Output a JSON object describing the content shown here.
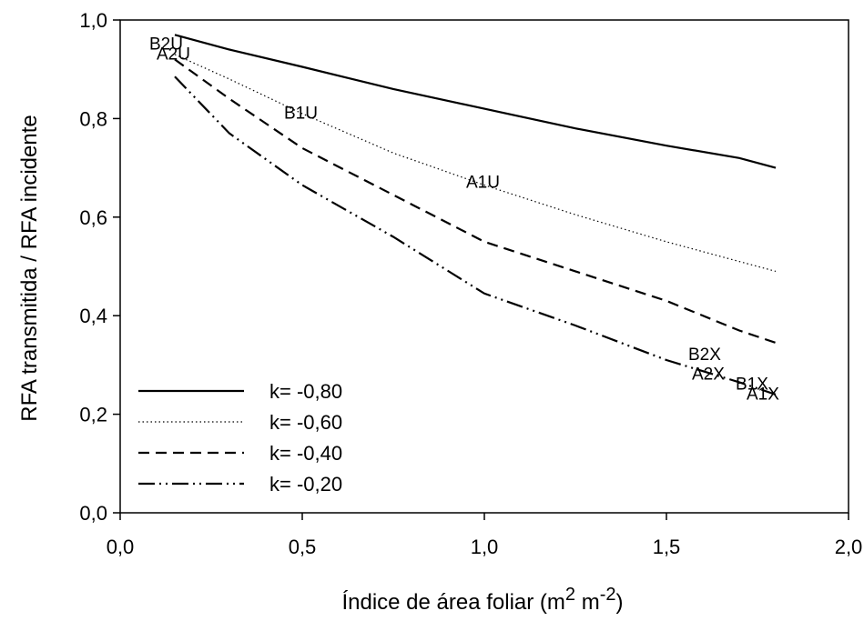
{
  "chart_data": {
    "type": "line",
    "xlabel_main": "Índice de área foliar (m",
    "xlabel_sup1": "2",
    "xlabel_mid": " m",
    "xlabel_sup2": "-2",
    "xlabel_end": ")",
    "ylabel": "RFA transmitida / RFA incidente",
    "xlim": [
      0.0,
      2.0
    ],
    "ylim": [
      0.0,
      1.0
    ],
    "x_ticks": [
      "0,0",
      "0,5",
      "1,0",
      "1,5",
      "2,0"
    ],
    "y_ticks": [
      "0,0",
      "0,2",
      "0,4",
      "0,6",
      "0,8",
      "1,0"
    ],
    "grid": false,
    "legend_position": "bottom-left",
    "series": [
      {
        "name": "k= -0,80",
        "style": "solid",
        "x": [
          0.15,
          0.3,
          0.5,
          0.75,
          1.0,
          1.25,
          1.5,
          1.7,
          1.8
        ],
        "y": [
          0.97,
          0.94,
          0.905,
          0.86,
          0.82,
          0.78,
          0.745,
          0.72,
          0.7
        ]
      },
      {
        "name": "k= -0,60",
        "style": "dotted",
        "x": [
          0.15,
          0.3,
          0.5,
          0.75,
          1.0,
          1.25,
          1.5,
          1.7,
          1.8
        ],
        "y": [
          0.93,
          0.88,
          0.81,
          0.73,
          0.665,
          0.605,
          0.55,
          0.51,
          0.49
        ]
      },
      {
        "name": "k= -0,40",
        "style": "dashed",
        "x": [
          0.15,
          0.3,
          0.5,
          0.75,
          1.0,
          1.25,
          1.5,
          1.7,
          1.8
        ],
        "y": [
          0.92,
          0.84,
          0.74,
          0.645,
          0.55,
          0.49,
          0.43,
          0.37,
          0.345
        ]
      },
      {
        "name": "k= -0,20",
        "style": "dashdot",
        "x": [
          0.15,
          0.3,
          0.5,
          0.75,
          1.0,
          1.25,
          1.5,
          1.7,
          1.8
        ],
        "y": [
          0.885,
          0.77,
          0.665,
          0.56,
          0.445,
          0.38,
          0.31,
          0.265,
          0.24
        ]
      }
    ],
    "point_labels": [
      {
        "text": "B2U",
        "x": 0.08,
        "y": 0.94
      },
      {
        "text": "A2U",
        "x": 0.1,
        "y": 0.92
      },
      {
        "text": "B1U",
        "x": 0.45,
        "y": 0.8
      },
      {
        "text": "A1U",
        "x": 0.95,
        "y": 0.66
      },
      {
        "text": "B2X",
        "x": 1.56,
        "y": 0.31
      },
      {
        "text": "A2X",
        "x": 1.57,
        "y": 0.27
      },
      {
        "text": "B1X",
        "x": 1.69,
        "y": 0.25
      },
      {
        "text": "A1X",
        "x": 1.72,
        "y": 0.23
      }
    ]
  }
}
